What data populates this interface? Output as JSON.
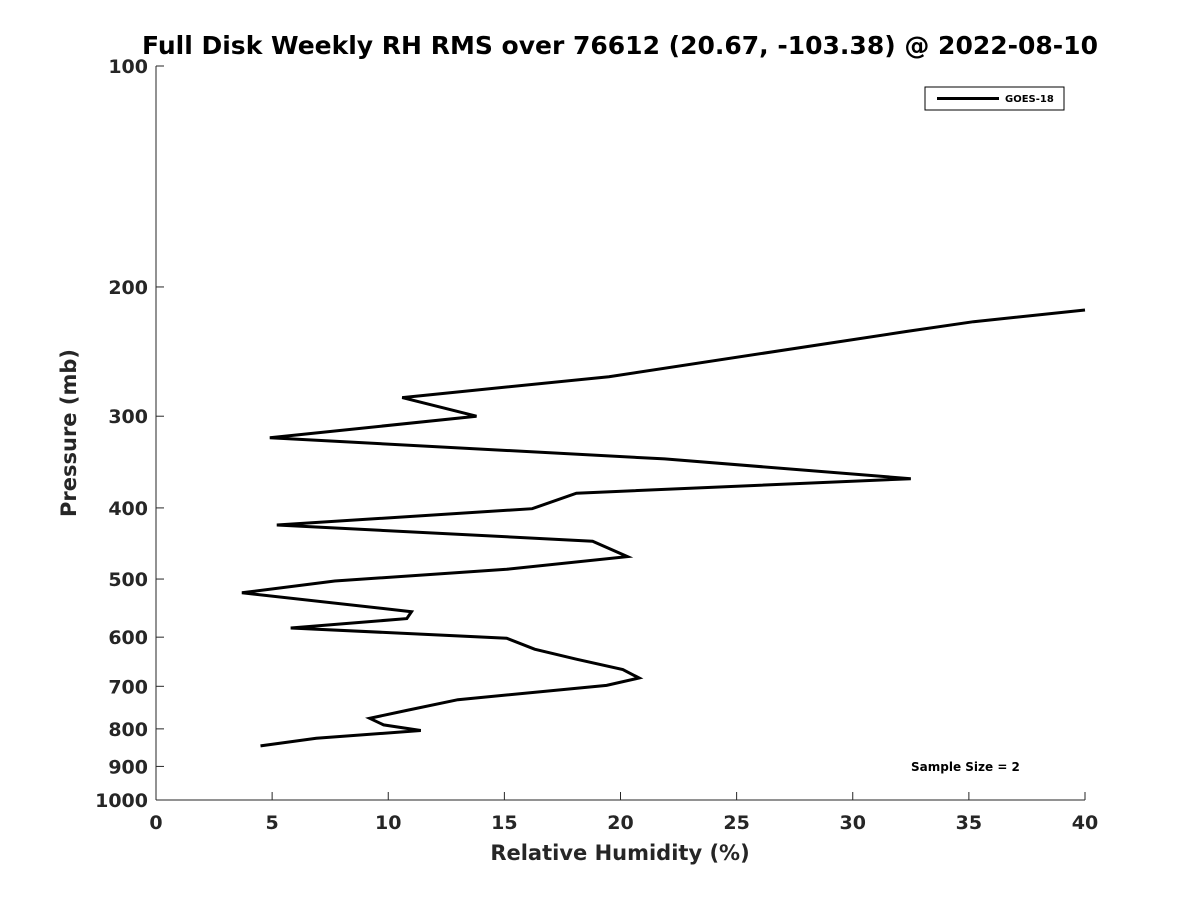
{
  "chart_data": {
    "type": "line",
    "title": "Full Disk Weekly RH RMS over 76612 (20.67, -103.38) @ 2022-08-10",
    "xlabel": "Relative Humidity (%)",
    "ylabel": "Pressure (mb)",
    "xlim": [
      0,
      40
    ],
    "ylim": [
      100,
      1000
    ],
    "y_scale": "log",
    "y_reversed": true,
    "x_ticks": [
      0,
      5,
      10,
      15,
      20,
      25,
      30,
      35,
      40
    ],
    "x_tick_labels": [
      "0",
      "5",
      "10",
      "15",
      "20",
      "25",
      "30",
      "35",
      "40"
    ],
    "y_ticks": [
      100,
      200,
      300,
      400,
      500,
      600,
      700,
      800,
      900,
      1000
    ],
    "y_tick_labels": [
      "100",
      "200",
      "300",
      "400",
      "500",
      "600",
      "700",
      "800",
      "900",
      "1000"
    ],
    "grid": false,
    "legend_position": "top-right",
    "series": [
      {
        "name": "GOES-18",
        "color": "#000000",
        "points": [
          {
            "x": 40.0,
            "y": 215
          },
          {
            "x": 35.2,
            "y": 223
          },
          {
            "x": 32.3,
            "y": 230
          },
          {
            "x": 19.5,
            "y": 265
          },
          {
            "x": 10.6,
            "y": 283
          },
          {
            "x": 13.8,
            "y": 300
          },
          {
            "x": 4.9,
            "y": 321
          },
          {
            "x": 21.9,
            "y": 343
          },
          {
            "x": 32.5,
            "y": 365
          },
          {
            "x": 18.1,
            "y": 382
          },
          {
            "x": 16.2,
            "y": 401
          },
          {
            "x": 5.2,
            "y": 422
          },
          {
            "x": 18.8,
            "y": 444
          },
          {
            "x": 20.3,
            "y": 466
          },
          {
            "x": 15.1,
            "y": 485
          },
          {
            "x": 7.7,
            "y": 503
          },
          {
            "x": 3.7,
            "y": 522
          },
          {
            "x": 11.0,
            "y": 554
          },
          {
            "x": 10.8,
            "y": 566
          },
          {
            "x": 5.8,
            "y": 583
          },
          {
            "x": 15.1,
            "y": 602
          },
          {
            "x": 16.3,
            "y": 623
          },
          {
            "x": 18.1,
            "y": 643
          },
          {
            "x": 20.1,
            "y": 664
          },
          {
            "x": 20.8,
            "y": 682
          },
          {
            "x": 19.4,
            "y": 698
          },
          {
            "x": 13.0,
            "y": 730
          },
          {
            "x": 10.8,
            "y": 755
          },
          {
            "x": 9.2,
            "y": 774
          },
          {
            "x": 9.8,
            "y": 790
          },
          {
            "x": 11.4,
            "y": 804
          },
          {
            "x": 6.9,
            "y": 824
          },
          {
            "x": 4.5,
            "y": 844
          }
        ]
      }
    ],
    "legend": [
      {
        "label": "GOES-18",
        "color": "#000000"
      }
    ],
    "annotation": "Sample Size = 2"
  }
}
